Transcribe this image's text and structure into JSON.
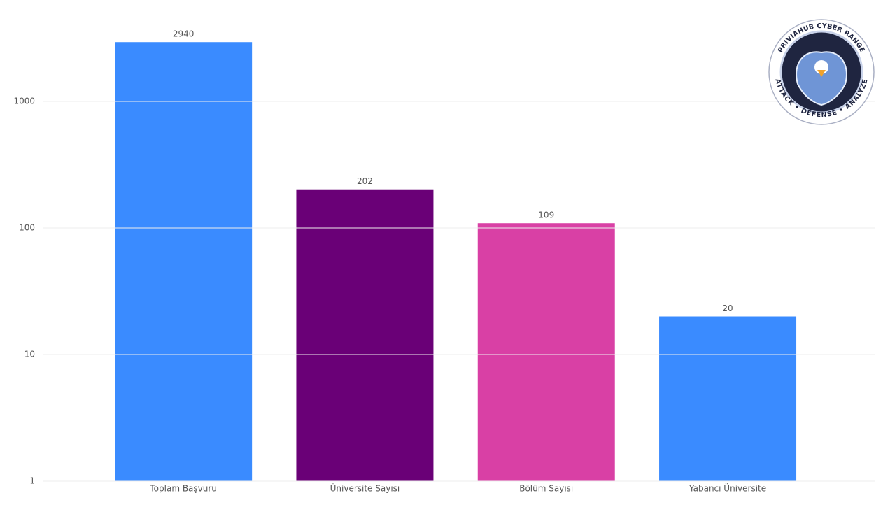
{
  "chart_data": {
    "type": "bar",
    "categories": [
      "Toplam Başvuru",
      "Üniversite Sayısı",
      "Bölüm Sayısı",
      "Yabancı Üniversite"
    ],
    "values": [
      2940,
      202,
      109,
      20
    ],
    "colors": [
      "#3a8bff",
      "#6a0077",
      "#d940a5",
      "#3a8bff"
    ],
    "log_scale": true,
    "ylim": [
      1,
      4000
    ],
    "yticks": [
      1,
      10,
      100,
      1000
    ],
    "grid": true
  },
  "logo": {
    "top_text": "PRIVIAHUB CYBER RANGE",
    "bottom_text": "ATTACK • DEFENSE • ANALYZE"
  }
}
